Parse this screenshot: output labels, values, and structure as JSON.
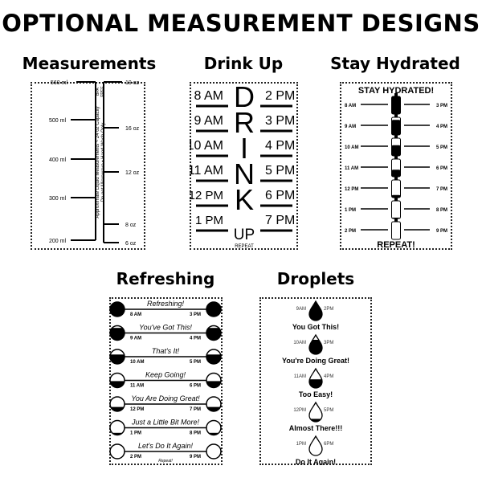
{
  "title": "OPTIONAL MEASUREMENT DESIGNS",
  "colors": {
    "ink": "#000000",
    "background": "#ffffff"
  },
  "designs": {
    "measurements": {
      "label": "Measurements",
      "ml_marks": [
        "560 ml",
        "500 ml",
        "400 ml",
        "300 ml",
        "200 ml"
      ],
      "oz_marks": [
        "19 oz",
        "16 oz",
        "12 oz",
        "8 oz",
        "6 oz"
      ],
      "badge": [
        "BPA",
        "FREE"
      ],
      "note_line1": "Approximate Liquid Measurements ~ 24 oz Capacity",
      "note_line2": "Do not Microwave  •  Hand Wash Only"
    },
    "drink_up": {
      "label": "Drink Up",
      "left_times": [
        "8 AM",
        "9 AM",
        "10 AM",
        "11 AM",
        "12 PM",
        "1 PM"
      ],
      "right_times": [
        "2 PM",
        "3 PM",
        "4 PM",
        "5 PM",
        "6 PM",
        "7 PM"
      ],
      "letters": [
        "D",
        "R",
        "I",
        "N",
        "K",
        "UP"
      ],
      "footer": "REPEAT"
    },
    "stay_hydrated": {
      "label": "Stay Hydrated",
      "header": "STAY HYDRATED!",
      "left_times": [
        "8 AM",
        "9 AM",
        "10 AM",
        "11 AM",
        "12 PM",
        "1 PM",
        "2 PM"
      ],
      "right_times": [
        "3 PM",
        "4 PM",
        "5 PM",
        "6 PM",
        "7 PM",
        "8 PM",
        "9 PM"
      ],
      "bottle_fill": [
        1.0,
        0.85,
        0.6,
        0.4,
        0.15,
        0.05,
        0
      ],
      "footer": "REPEAT!"
    },
    "refreshing": {
      "label": "Refreshing",
      "messages": [
        "Refreshing!",
        "You've Got This!",
        "That's It!",
        "Keep Going!",
        "You Are Doing Great!",
        "Just a Little Bit More!",
        "Let's Do It Again!"
      ],
      "left_times": [
        "8 AM",
        "9 AM",
        "10 AM",
        "11 AM",
        "12 PM",
        "1 PM",
        "2 PM"
      ],
      "right_times": [
        "3 PM",
        "4 PM",
        "5 PM",
        "6 PM",
        "7 PM",
        "8 PM",
        "9 PM"
      ],
      "circle_fill": [
        1.0,
        0.85,
        0.65,
        0.45,
        0.3,
        0.15,
        0
      ],
      "footer": "Repeat!"
    },
    "droplets": {
      "label": "Droplets",
      "left_times": [
        "9AM",
        "10AM",
        "11AM",
        "12PM",
        "1PM"
      ],
      "right_times": [
        "2PM",
        "3PM",
        "4PM",
        "5PM",
        "6PM"
      ],
      "messages": [
        "You Got This!",
        "You're Doing Great!",
        "Too Easy!",
        "Almost There!!!",
        "Do It Again!"
      ],
      "drop_fill": [
        1.0,
        0.75,
        0.45,
        0.15,
        0
      ]
    }
  }
}
